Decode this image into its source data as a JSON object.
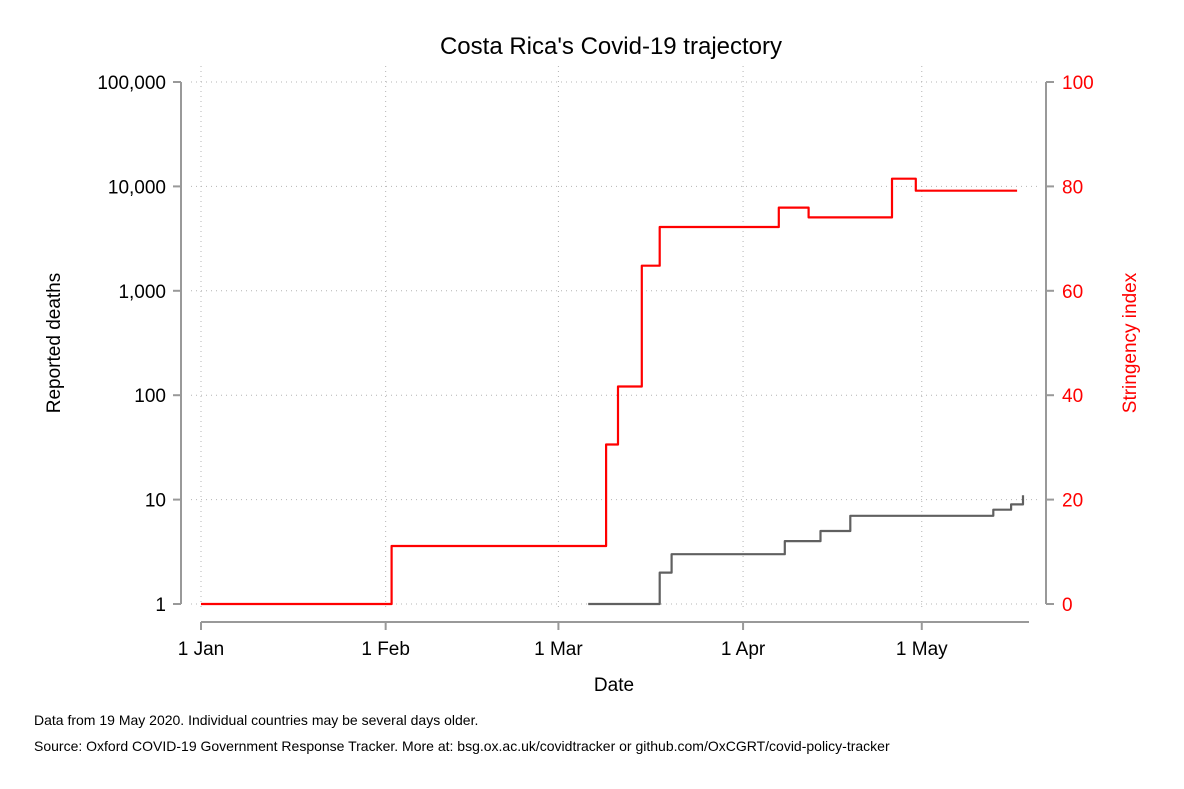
{
  "chart_data": {
    "type": "line",
    "title": "Costa Rica's Covid-19 trajectory",
    "xlabel": "Date",
    "ylabel_left": "Reported deaths",
    "ylabel_right": "Stringency index",
    "x_ticks": [
      {
        "date": "2020-01-01",
        "label": "1 Jan"
      },
      {
        "date": "2020-02-01",
        "label": "1 Feb"
      },
      {
        "date": "2020-03-01",
        "label": "1 Mar"
      },
      {
        "date": "2020-04-01",
        "label": "1 Apr"
      },
      {
        "date": "2020-05-01",
        "label": "1 May"
      }
    ],
    "xlim": [
      "2020-01-01",
      "2020-05-19"
    ],
    "left_axis": {
      "scale": "log",
      "ylim": [
        1,
        100000
      ],
      "ticks": [
        {
          "value": 1,
          "label": "1"
        },
        {
          "value": 10,
          "label": "10"
        },
        {
          "value": 100,
          "label": "100"
        },
        {
          "value": 1000,
          "label": "1,000"
        },
        {
          "value": 10000,
          "label": "10,000"
        },
        {
          "value": 100000,
          "label": "100,000"
        }
      ]
    },
    "right_axis": {
      "scale": "linear",
      "ylim": [
        0,
        100
      ],
      "ticks": [
        {
          "value": 0,
          "label": "0"
        },
        {
          "value": 20,
          "label": "20"
        },
        {
          "value": 40,
          "label": "40"
        },
        {
          "value": 60,
          "label": "60"
        },
        {
          "value": 80,
          "label": "80"
        },
        {
          "value": 100,
          "label": "100"
        }
      ]
    },
    "grid": true,
    "legend": "none",
    "colors": {
      "deaths": "#606060",
      "stringency": "#ff0000",
      "axis": "#999999",
      "grid": "#b4b4b4"
    },
    "series": [
      {
        "axis": "left",
        "style": "step",
        "points": [
          [
            "2020-03-06",
            1
          ],
          [
            "2020-03-18",
            2
          ],
          [
            "2020-03-19",
            2
          ],
          [
            "2020-03-20",
            3
          ],
          [
            "2020-04-08",
            4
          ],
          [
            "2020-04-14",
            5
          ],
          [
            "2020-04-19",
            7
          ],
          [
            "2020-05-13",
            8
          ],
          [
            "2020-05-16",
            9
          ],
          [
            "2020-05-18",
            11
          ]
        ]
      },
      {
        "axis": "right",
        "style": "step",
        "points": [
          [
            "2020-01-01",
            0
          ],
          [
            "2020-02-02",
            11.11
          ],
          [
            "2020-03-09",
            30.56
          ],
          [
            "2020-03-10",
            30.56
          ],
          [
            "2020-03-11",
            41.67
          ],
          [
            "2020-03-15",
            64.81
          ],
          [
            "2020-03-18",
            72.22
          ],
          [
            "2020-04-07",
            75.93
          ],
          [
            "2020-04-12",
            74.07
          ],
          [
            "2020-04-26",
            81.48
          ],
          [
            "2020-04-30",
            79.17
          ],
          [
            "2020-05-17",
            79.17
          ]
        ]
      }
    ]
  },
  "footer": {
    "note": "Data from 19 May 2020. Individual countries may be several days older.",
    "source": "Source: Oxford COVID-19 Government Response Tracker. More at: bsg.ox.ac.uk/covidtracker or github.com/OxCGRT/covid-policy-tracker"
  }
}
